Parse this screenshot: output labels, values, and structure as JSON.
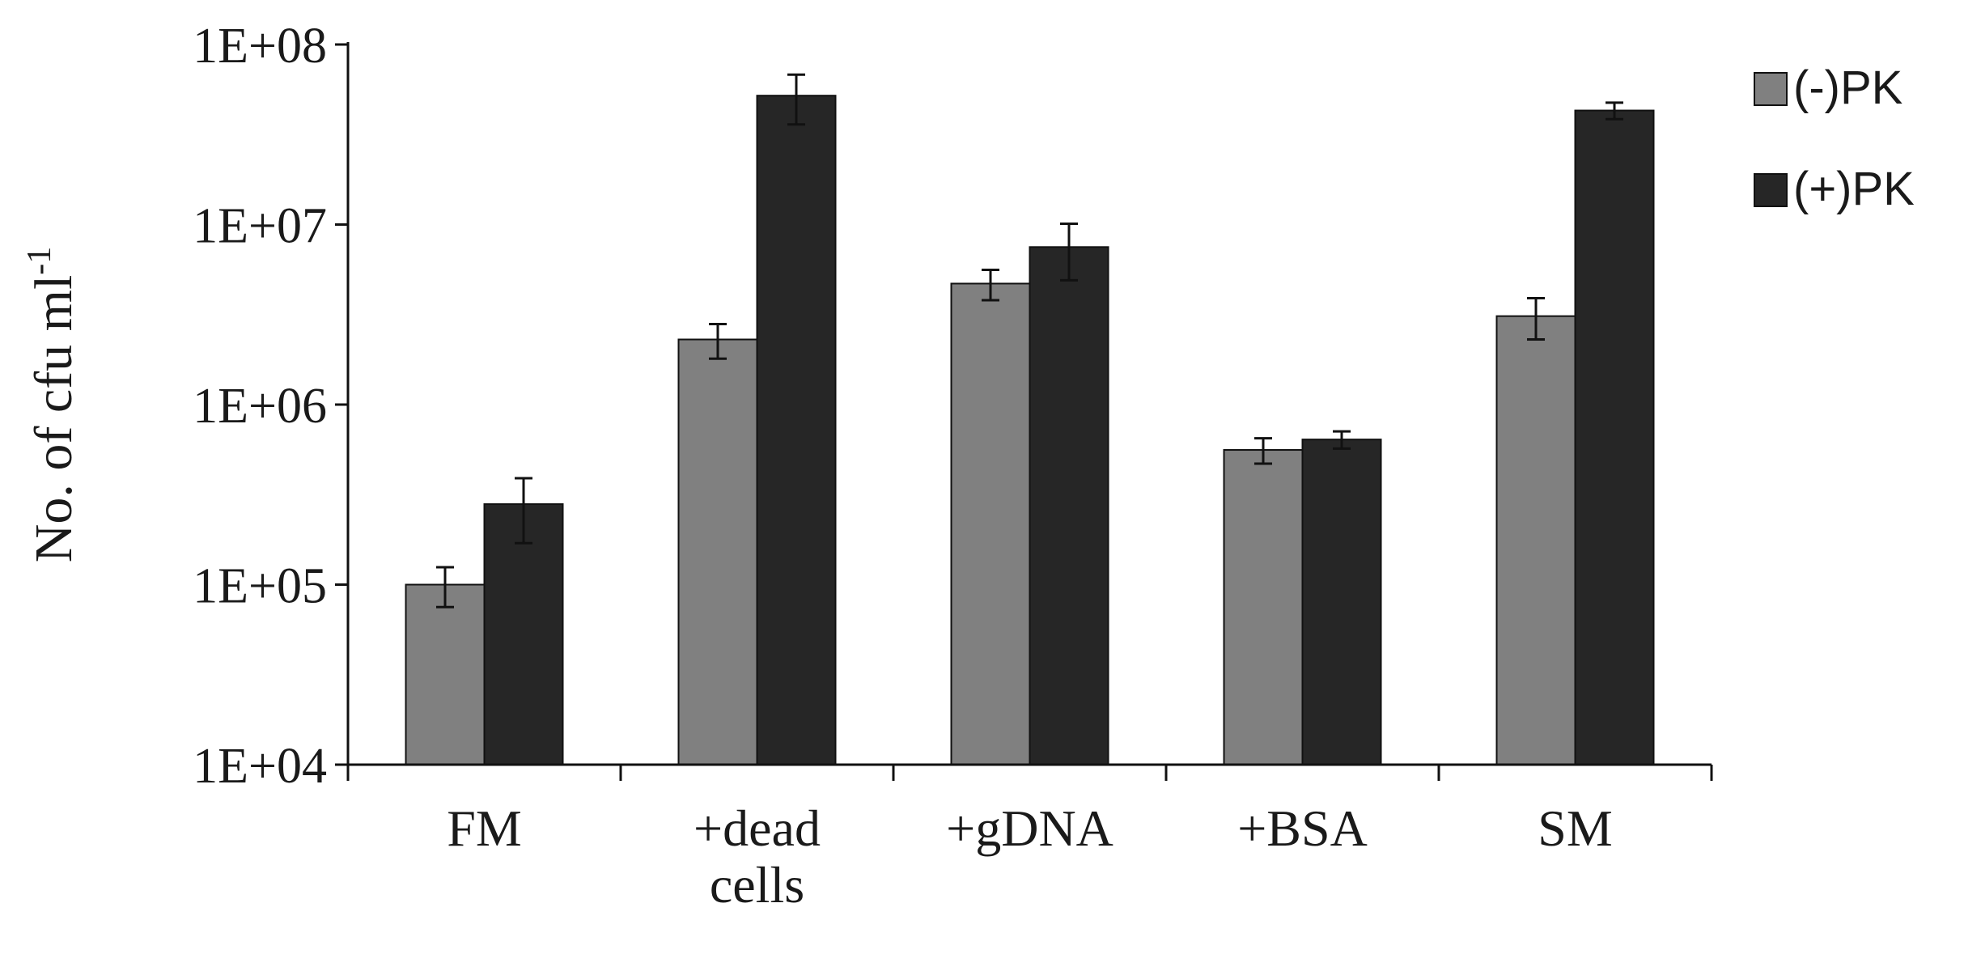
{
  "chart_data": {
    "type": "bar",
    "title": "",
    "xlabel": "",
    "ylabel": "No. of cfu ml",
    "ylabel_superscript": "-1",
    "yscale": "log",
    "ylim": [
      10000,
      100000000
    ],
    "y_tick_values": [
      10000,
      100000,
      1000000,
      10000000,
      100000000
    ],
    "y_tick_labels": [
      "1E+04",
      "1E+05",
      "1E+06",
      "1E+07",
      "1E+08"
    ],
    "categories": [
      [
        "FM"
      ],
      [
        "+dead",
        "cells"
      ],
      [
        "+gDNA"
      ],
      [
        "+BSA"
      ],
      [
        "SM"
      ]
    ],
    "series": [
      {
        "name": "(-)PK",
        "color": "#808080",
        "values": [
          100000,
          2300000,
          4700000,
          560000,
          3100000
        ],
        "errors": [
          25000,
          500000,
          900000,
          90000,
          800000
        ]
      },
      {
        "name": "(+)PK",
        "color": "#262626",
        "values": [
          280000,
          52000000,
          7500000,
          640000,
          43000000
        ],
        "errors": [
          110000,
          16000000,
          2600000,
          70000,
          4500000
        ]
      }
    ],
    "legend_position": "top-right",
    "grid": false
  }
}
